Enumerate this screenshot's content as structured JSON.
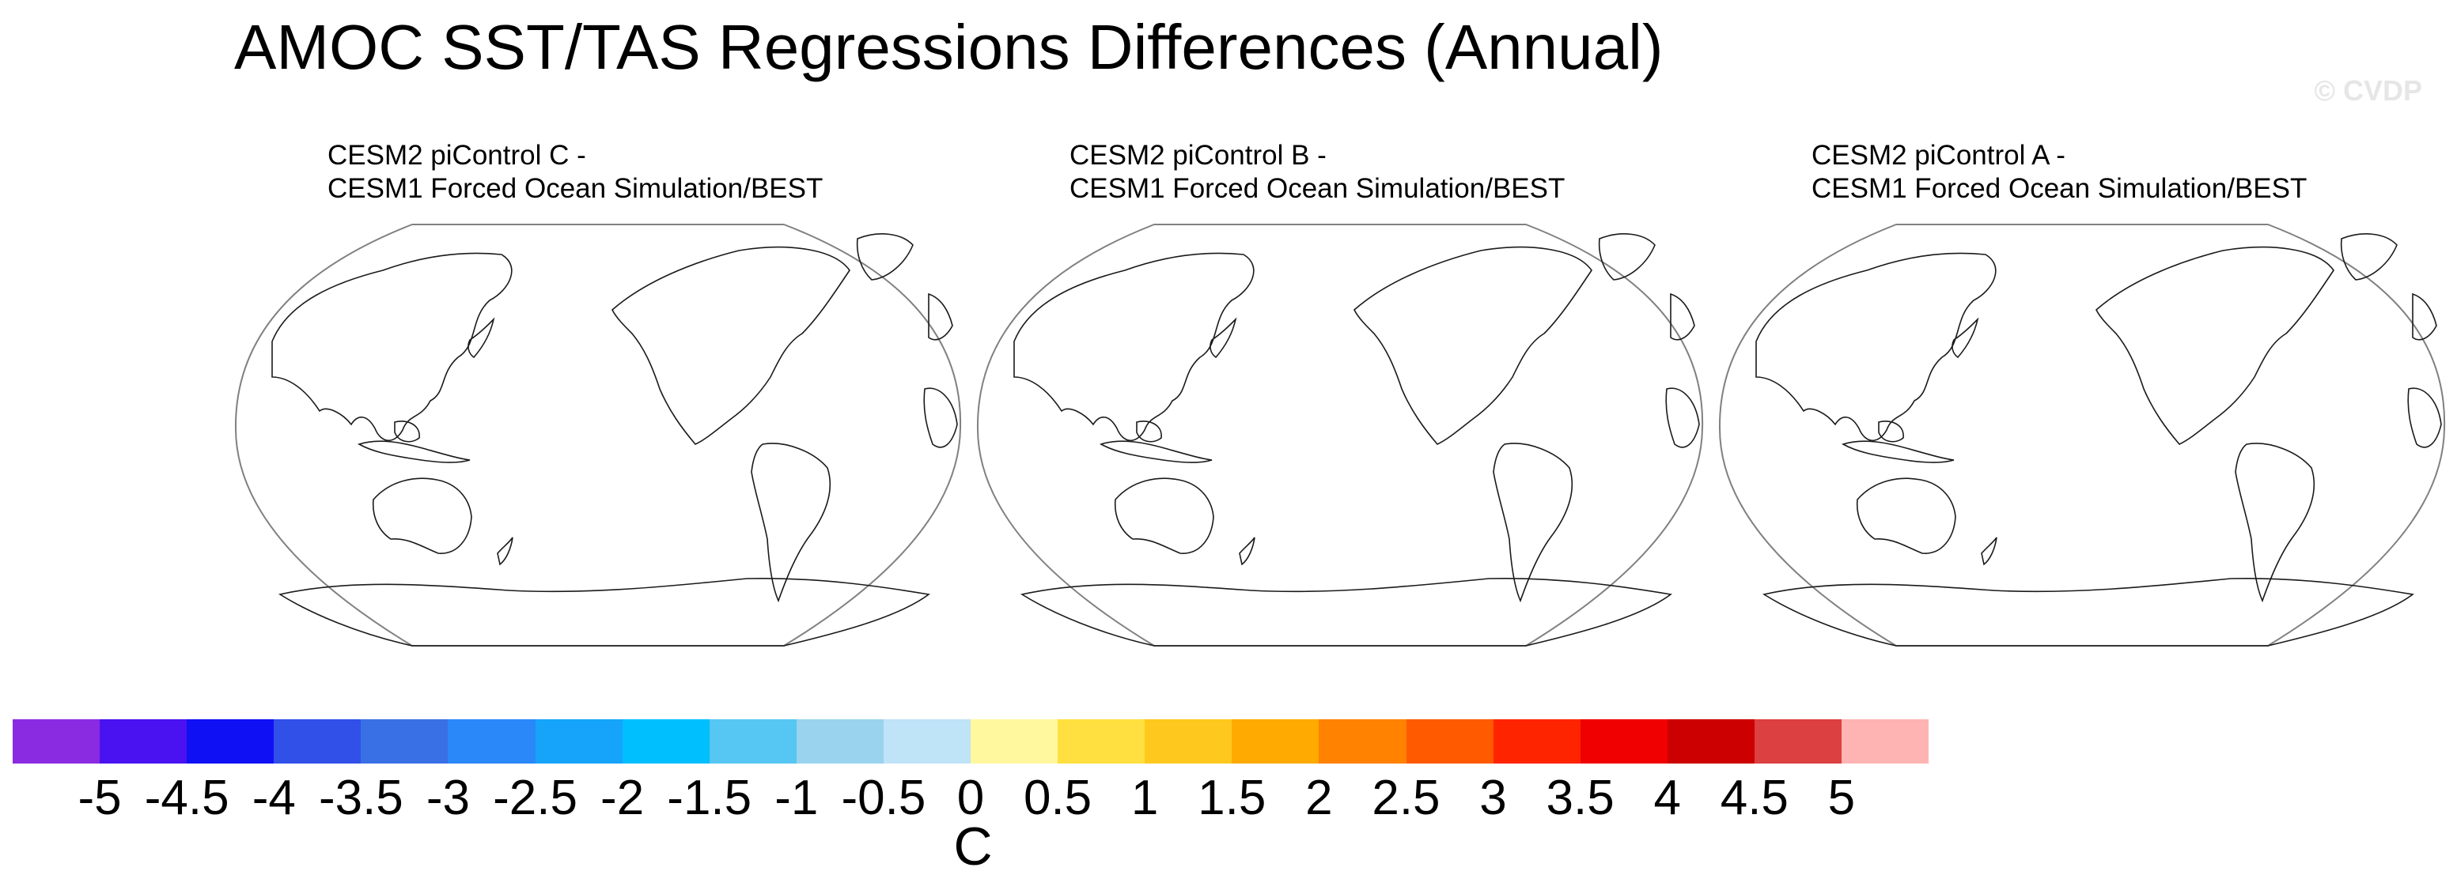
{
  "title": "AMOC SST/TAS Regressions Differences (Annual)",
  "watermark": "© CVDP",
  "panels": [
    {
      "line1": "CESM2 piControl C -",
      "line2": "CESM1 Forced Ocean Simulation/BEST"
    },
    {
      "line1": "CESM2 piControl B -",
      "line2": "CESM1 Forced Ocean Simulation/BEST"
    },
    {
      "line1": "CESM2 piControl A -",
      "line2": "CESM1 Forced Ocean Simulation/BEST"
    }
  ],
  "colorbar": {
    "colors": [
      "#8a2be2",
      "#4a12f0",
      "#1010f5",
      "#3050e8",
      "#3a70e6",
      "#2a88f8",
      "#16a4fa",
      "#00bfff",
      "#56c6f2",
      "#9ad3ee",
      "#bfe3f7",
      "#fff89e",
      "#ffe040",
      "#ffc81e",
      "#ffaa00",
      "#ff8200",
      "#ff5a00",
      "#ff2400",
      "#f00000",
      "#cc0000",
      "#dc4040",
      "#ffb4b4"
    ],
    "tick_labels": [
      "-5",
      "-4.5",
      "-4",
      "-3.5",
      "-3",
      "-2.5",
      "-2",
      "-1.5",
      "-1",
      "-0.5",
      "0",
      "0.5",
      "1",
      "1.5",
      "2",
      "2.5",
      "3",
      "3.5",
      "4",
      "4.5",
      "5"
    ],
    "units": "C"
  }
}
